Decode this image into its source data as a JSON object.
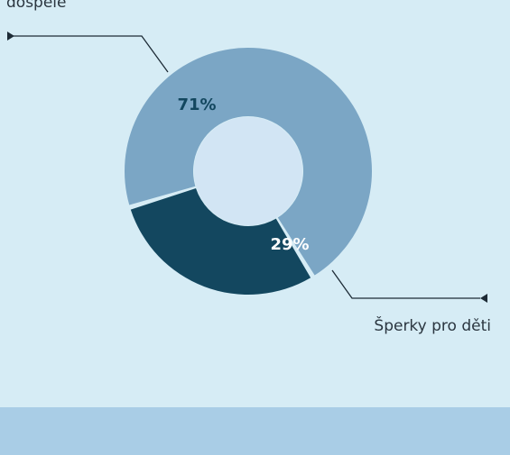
{
  "colors": {
    "background": "#d6ecf5",
    "bottom_band": "#a9cde6",
    "slice_adults": "#7ba6c5",
    "slice_kids": "#13475f",
    "hole": "#d2e5f4",
    "leader": "#1d2b36"
  },
  "chart_data": {
    "type": "pie",
    "subtype": "donut",
    "series": [
      {
        "name": "dospělé",
        "value": 71,
        "label": "71%",
        "color": "#7ba6c5"
      },
      {
        "name": "Šperky pro děti",
        "value": 29,
        "label": "29%",
        "color": "#13475f"
      }
    ],
    "labels_visible": {
      "adults": "dospělé",
      "kids": "Šperky pro děti"
    }
  }
}
